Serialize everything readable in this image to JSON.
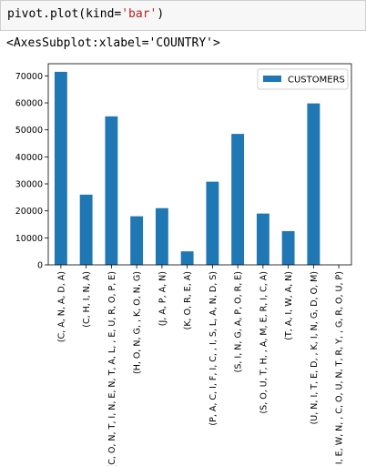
{
  "code_cell": {
    "prefix": "pivot.plot(kind=",
    "string_arg": "'bar'",
    "suffix": ")"
  },
  "output_text": "<AxesSubplot:xlabel='COUNTRY'>",
  "chart_data": {
    "type": "bar",
    "categories": [
      "(C, A, N, A, D, A)",
      "(C, H, I, N, A)",
      "(C, O, N, T, I, N, E, N, T, A, L,  , E, U, R, O, P, E)",
      "(H, O, N, G,  , K, O, N, G)",
      "(J, A, P, A, N)",
      "(K, O, R, E, A)",
      "(P, A, C, I, F, I, C,  , I, S, L, A, N, D, S)",
      "(S, I, N, G, A, P, O, R, E)",
      "(S, O, U, T, H,  , A, M, E, R, I, C, A)",
      "(T, A, I, W, A, N)",
      "(U, N, I, T, E, D,  , K, I, N, G, D, O, M)",
      "(V, I, E, W, N,  , C, O, U, N, T, R, Y,  , G, R, O, U, P)"
    ],
    "series": [
      {
        "name": "CUSTOMERS",
        "values": [
          71500,
          26000,
          55000,
          18000,
          21000,
          5000,
          30800,
          48500,
          19000,
          12500,
          59800,
          0
        ],
        "color": "#1f77b4"
      }
    ],
    "y_ticks": [
      0,
      10000,
      20000,
      30000,
      40000,
      50000,
      60000,
      70000
    ],
    "ylim": [
      0,
      74500
    ],
    "legend_position": "top-right",
    "grid": false
  }
}
